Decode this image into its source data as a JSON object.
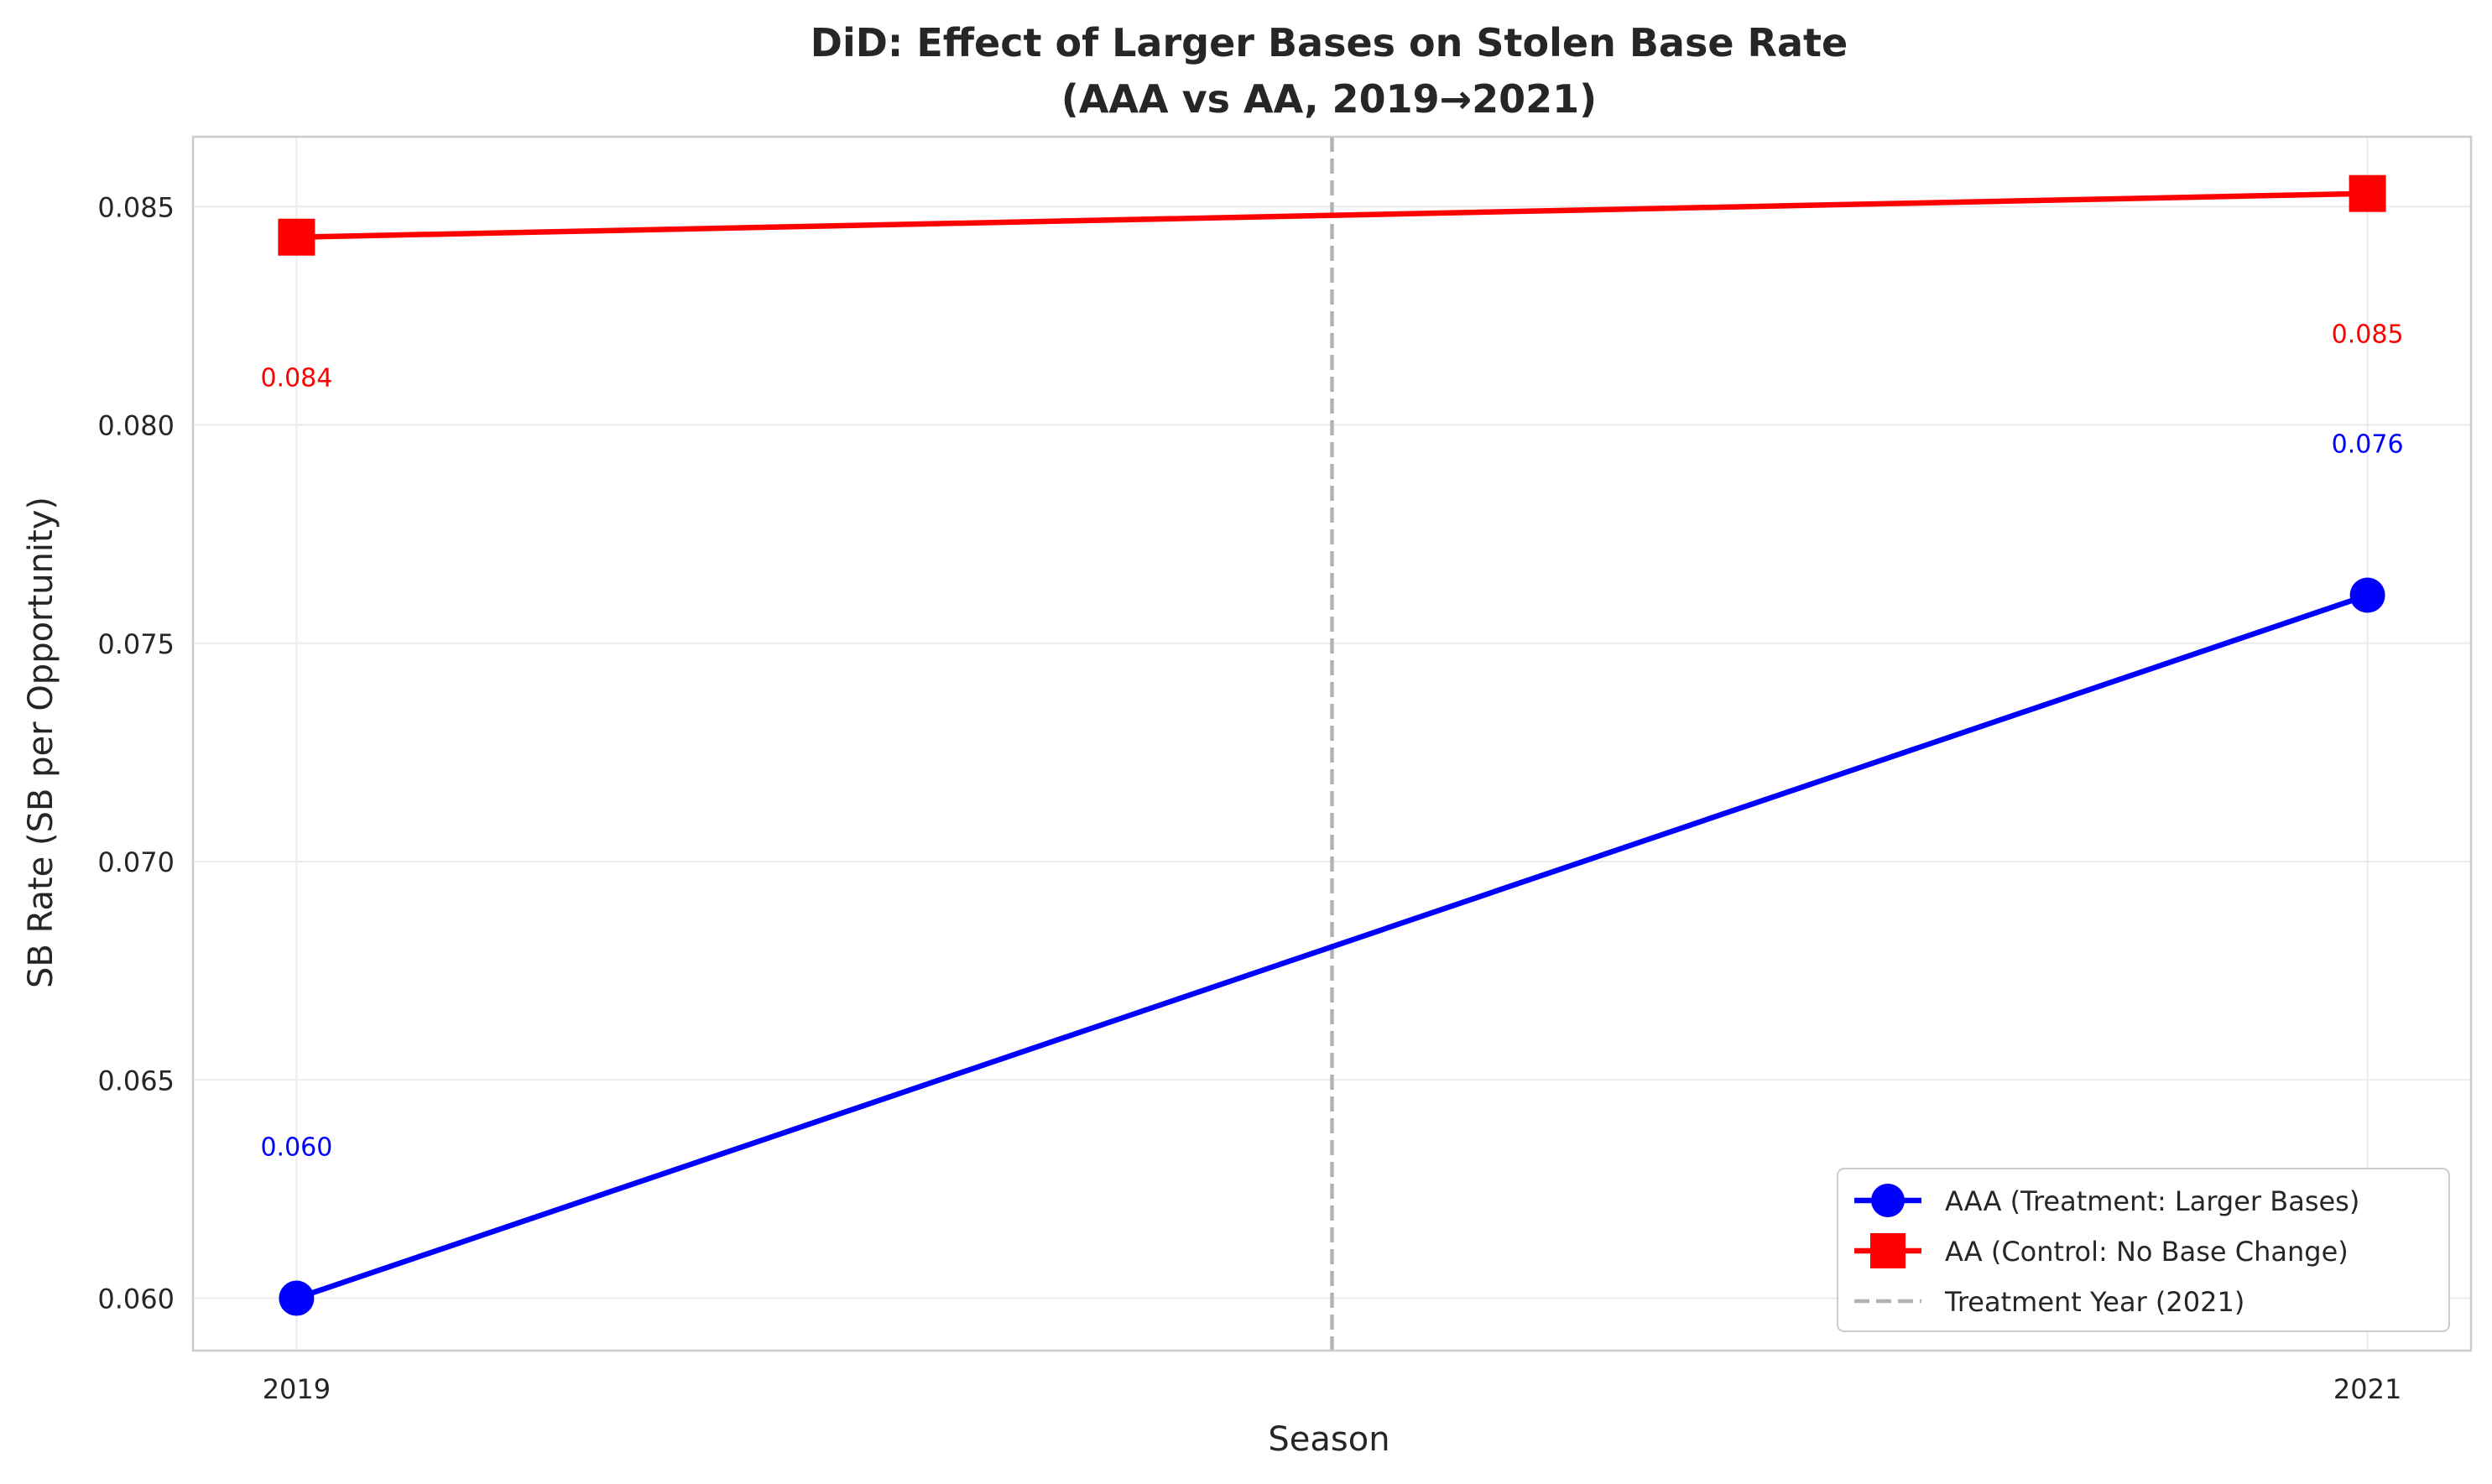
{
  "chart_data": {
    "type": "line",
    "title_line1": "DiD: Effect of Larger Bases on Stolen Base Rate",
    "title_line2": "(AAA vs AA, 2019→2021)",
    "xlabel": "Season",
    "ylabel": "SB Rate (SB per Opportunity)",
    "x": [
      2019,
      2021
    ],
    "x_tick_labels": [
      "2019",
      "2021"
    ],
    "y_ticks": [
      0.06,
      0.065,
      0.07,
      0.075,
      0.08,
      0.085
    ],
    "y_tick_labels": [
      "0.060",
      "0.065",
      "0.070",
      "0.075",
      "0.080",
      "0.085"
    ],
    "xlim": [
      2018.9,
      2021.1
    ],
    "ylim": [
      0.0588,
      0.0866
    ],
    "grid": true,
    "legend_position": "lower-right",
    "series": [
      {
        "name": "AAA (Treatment: Larger Bases)",
        "values": [
          0.06,
          0.0761
        ],
        "labels": [
          "0.060",
          "0.076"
        ],
        "color": "#0000ff",
        "marker": "circle"
      },
      {
        "name": "AA (Control: No Base Change)",
        "values": [
          0.0843,
          0.0853
        ],
        "labels": [
          "0.084",
          "0.085"
        ],
        "color": "#ff0000",
        "marker": "square"
      }
    ],
    "reference_line": {
      "name": "Treatment Year (2021)",
      "x": 2020,
      "color": "#b3b3b3",
      "style": "dashed"
    }
  }
}
